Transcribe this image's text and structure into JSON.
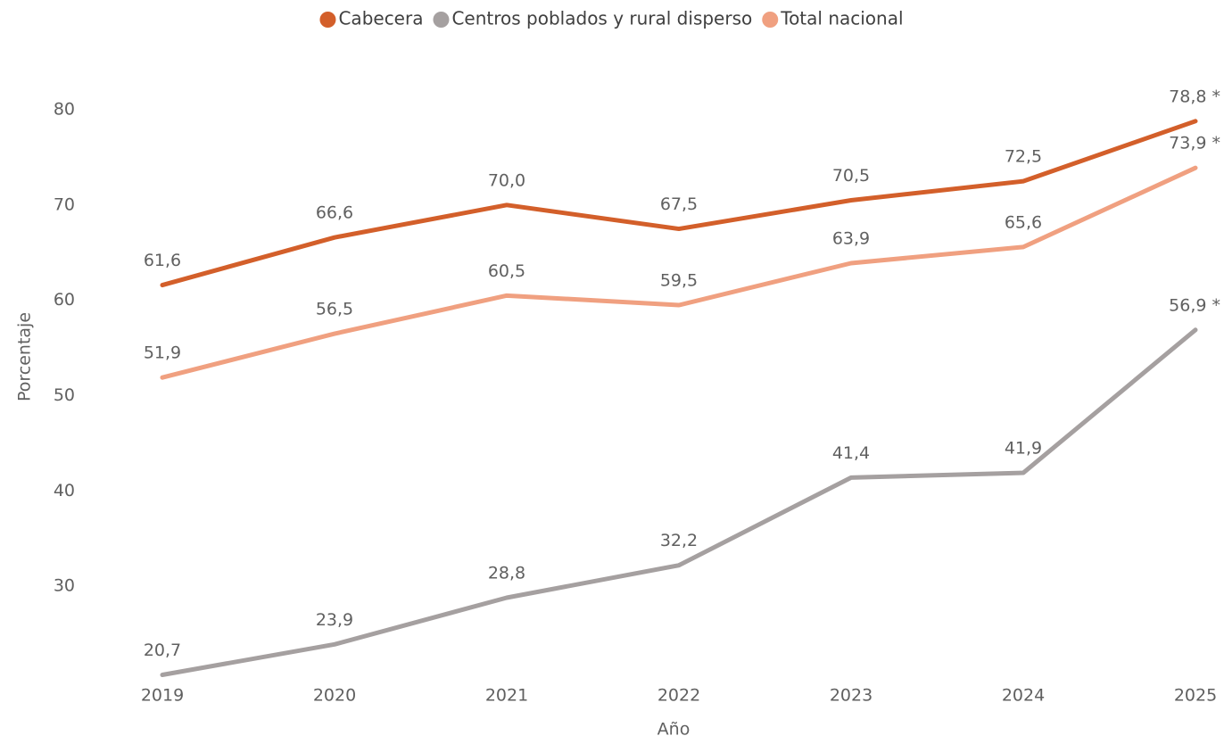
{
  "chart_data": {
    "type": "line",
    "categories": [
      "2019",
      "2020",
      "2021",
      "2022",
      "2023",
      "2024",
      "2025"
    ],
    "x_label": "Año",
    "y_label": "Porcentaje",
    "ylim": [
      20,
      80
    ],
    "yticks": [
      30,
      40,
      50,
      60,
      70,
      80
    ],
    "grid": false,
    "legend": "top",
    "series": [
      {
        "name": "Cabecera",
        "color": "#d35f2a",
        "values": [
          61.6,
          66.6,
          70.0,
          67.5,
          70.5,
          72.5,
          78.8
        ],
        "value_labels": [
          "61,6",
          "66,6",
          "70,0",
          "67,5",
          "70,5",
          "72,5",
          "78,8 *"
        ]
      },
      {
        "name": "Centros poblados y rural disperso",
        "color": "#a5a0a0",
        "values": [
          20.7,
          23.9,
          28.8,
          32.2,
          41.4,
          41.9,
          56.9
        ],
        "value_labels": [
          "20,7",
          "23,9",
          "28,8",
          "32,2",
          "41,4",
          "41,9",
          "56,9 *"
        ]
      },
      {
        "name": "Total nacional",
        "color": "#f0a080",
        "values": [
          51.9,
          56.5,
          60.5,
          59.5,
          63.9,
          65.6,
          73.9
        ],
        "value_labels": [
          "51,9",
          "56,5",
          "60,5",
          "59,5",
          "63,9",
          "65,6",
          "73,9 *"
        ]
      }
    ]
  }
}
